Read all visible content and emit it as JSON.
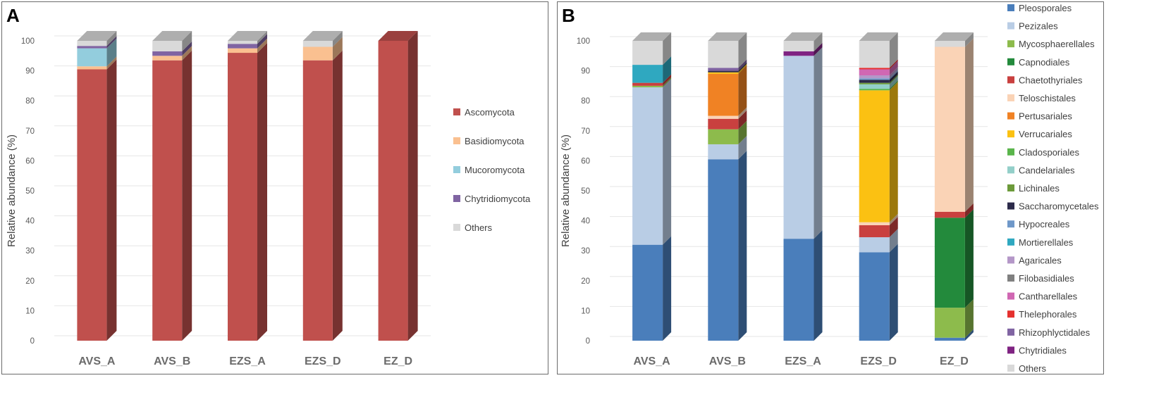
{
  "chart_data": [
    {
      "panel": "A",
      "type": "bar",
      "stacked": true,
      "title": "",
      "xlabel": "",
      "ylabel": "Relative abundance (%)",
      "ylim": [
        0,
        100
      ],
      "yticks": [
        "0",
        "10",
        "20",
        "30",
        "40",
        "50",
        "60",
        "70",
        "80",
        "90",
        "100"
      ],
      "categories": [
        "AVS_A",
        "AVS_B",
        "EZS_A",
        "EZS_D",
        "EZ_D"
      ],
      "legend_position": "right",
      "series": [
        {
          "name": "Ascomycota",
          "color": "#c0504d",
          "values": [
            90.5,
            93.5,
            96.0,
            93.5,
            100.0
          ]
        },
        {
          "name": "Basidiomycota",
          "color": "#fac090",
          "values": [
            1.0,
            1.5,
            1.5,
            4.5,
            0.0
          ]
        },
        {
          "name": "Mucoromycota",
          "color": "#93cddd",
          "values": [
            6.0,
            0.0,
            0.0,
            0.0,
            0.0
          ]
        },
        {
          "name": "Chytridiomycota",
          "color": "#8064a2",
          "values": [
            0.8,
            1.5,
            1.5,
            0.0,
            0.0
          ]
        },
        {
          "name": "Others",
          "color": "#d9d9d9",
          "values": [
            1.7,
            3.5,
            1.0,
            2.0,
            0.0
          ]
        }
      ]
    },
    {
      "panel": "B",
      "type": "bar",
      "stacked": true,
      "title": "",
      "xlabel": "",
      "ylabel": "Relative abundance (%)",
      "ylim": [
        0,
        100
      ],
      "yticks": [
        "0",
        "10",
        "20",
        "30",
        "40",
        "50",
        "60",
        "70",
        "80",
        "90",
        "100"
      ],
      "categories": [
        "AVS_A",
        "AVS_B",
        "EZS_A",
        "EZS_D",
        "EZ_D"
      ],
      "legend_position": "right",
      "series": [
        {
          "name": "Pleosporales",
          "color": "#4a7ebb",
          "values": [
            32.0,
            60.5,
            34.0,
            29.5,
            1.0
          ]
        },
        {
          "name": "Pezizales",
          "color": "#b9cde5",
          "values": [
            52.5,
            5.0,
            61.0,
            5.0,
            0.0
          ]
        },
        {
          "name": "Mycosphaerellales",
          "color": "#8dbb4c",
          "values": [
            0.5,
            5.0,
            0.0,
            0.0,
            10.0
          ]
        },
        {
          "name": "Capnodiales",
          "color": "#238a3c",
          "values": [
            0.0,
            0.0,
            0.0,
            0.0,
            30.0
          ]
        },
        {
          "name": "Chaetothyriales",
          "color": "#c9403f",
          "values": [
            1.0,
            3.5,
            0.0,
            4.0,
            2.0
          ]
        },
        {
          "name": "Teloschistales",
          "color": "#fad3b6",
          "values": [
            0.0,
            1.0,
            0.0,
            1.0,
            55.0
          ]
        },
        {
          "name": "Pertusariales",
          "color": "#f08224",
          "values": [
            0.0,
            14.0,
            0.0,
            0.0,
            0.0
          ]
        },
        {
          "name": "Verrucariales",
          "color": "#fbc112",
          "values": [
            0.0,
            0.5,
            0.0,
            44.0,
            0.0
          ]
        },
        {
          "name": "Cladosporiales",
          "color": "#5ab54b",
          "values": [
            0.0,
            0.0,
            0.0,
            0.5,
            0.0
          ]
        },
        {
          "name": "Candelariales",
          "color": "#93cfc9",
          "values": [
            0.0,
            0.0,
            0.0,
            1.5,
            0.0
          ]
        },
        {
          "name": "Lichinales",
          "color": "#6c9a3a",
          "values": [
            0.0,
            0.0,
            0.0,
            0.5,
            0.0
          ]
        },
        {
          "name": "Saccharomycetales",
          "color": "#2c2a4a",
          "values": [
            0.0,
            0.5,
            0.0,
            1.0,
            0.0
          ]
        },
        {
          "name": "Hypocreales",
          "color": "#6f98c9",
          "values": [
            0.0,
            0.0,
            0.0,
            0.5,
            0.0
          ]
        },
        {
          "name": "Mortierellales",
          "color": "#2fa8c0",
          "values": [
            6.0,
            0.0,
            0.0,
            0.0,
            0.0
          ]
        },
        {
          "name": "Agaricales",
          "color": "#b497c8",
          "values": [
            0.0,
            0.0,
            0.0,
            1.0,
            0.0
          ]
        },
        {
          "name": "Filobasidiales",
          "color": "#808080",
          "values": [
            0.0,
            0.0,
            0.0,
            0.0,
            0.0
          ]
        },
        {
          "name": "Cantharellales",
          "color": "#d067b3",
          "values": [
            0.0,
            0.0,
            0.0,
            2.0,
            0.0
          ]
        },
        {
          "name": "Thelephorales",
          "color": "#e5312f",
          "values": [
            0.0,
            0.0,
            0.0,
            0.5,
            0.0
          ]
        },
        {
          "name": "Rhizophlyctidales",
          "color": "#8064a2",
          "values": [
            0.0,
            1.0,
            0.0,
            0.0,
            0.0
          ]
        },
        {
          "name": "Chytridiales",
          "color": "#7f2382",
          "values": [
            0.0,
            0.0,
            1.5,
            0.0,
            0.0
          ]
        },
        {
          "name": "Others",
          "color": "#d9d9d9",
          "values": [
            8.0,
            9.0,
            3.5,
            9.0,
            2.0
          ]
        }
      ]
    }
  ]
}
